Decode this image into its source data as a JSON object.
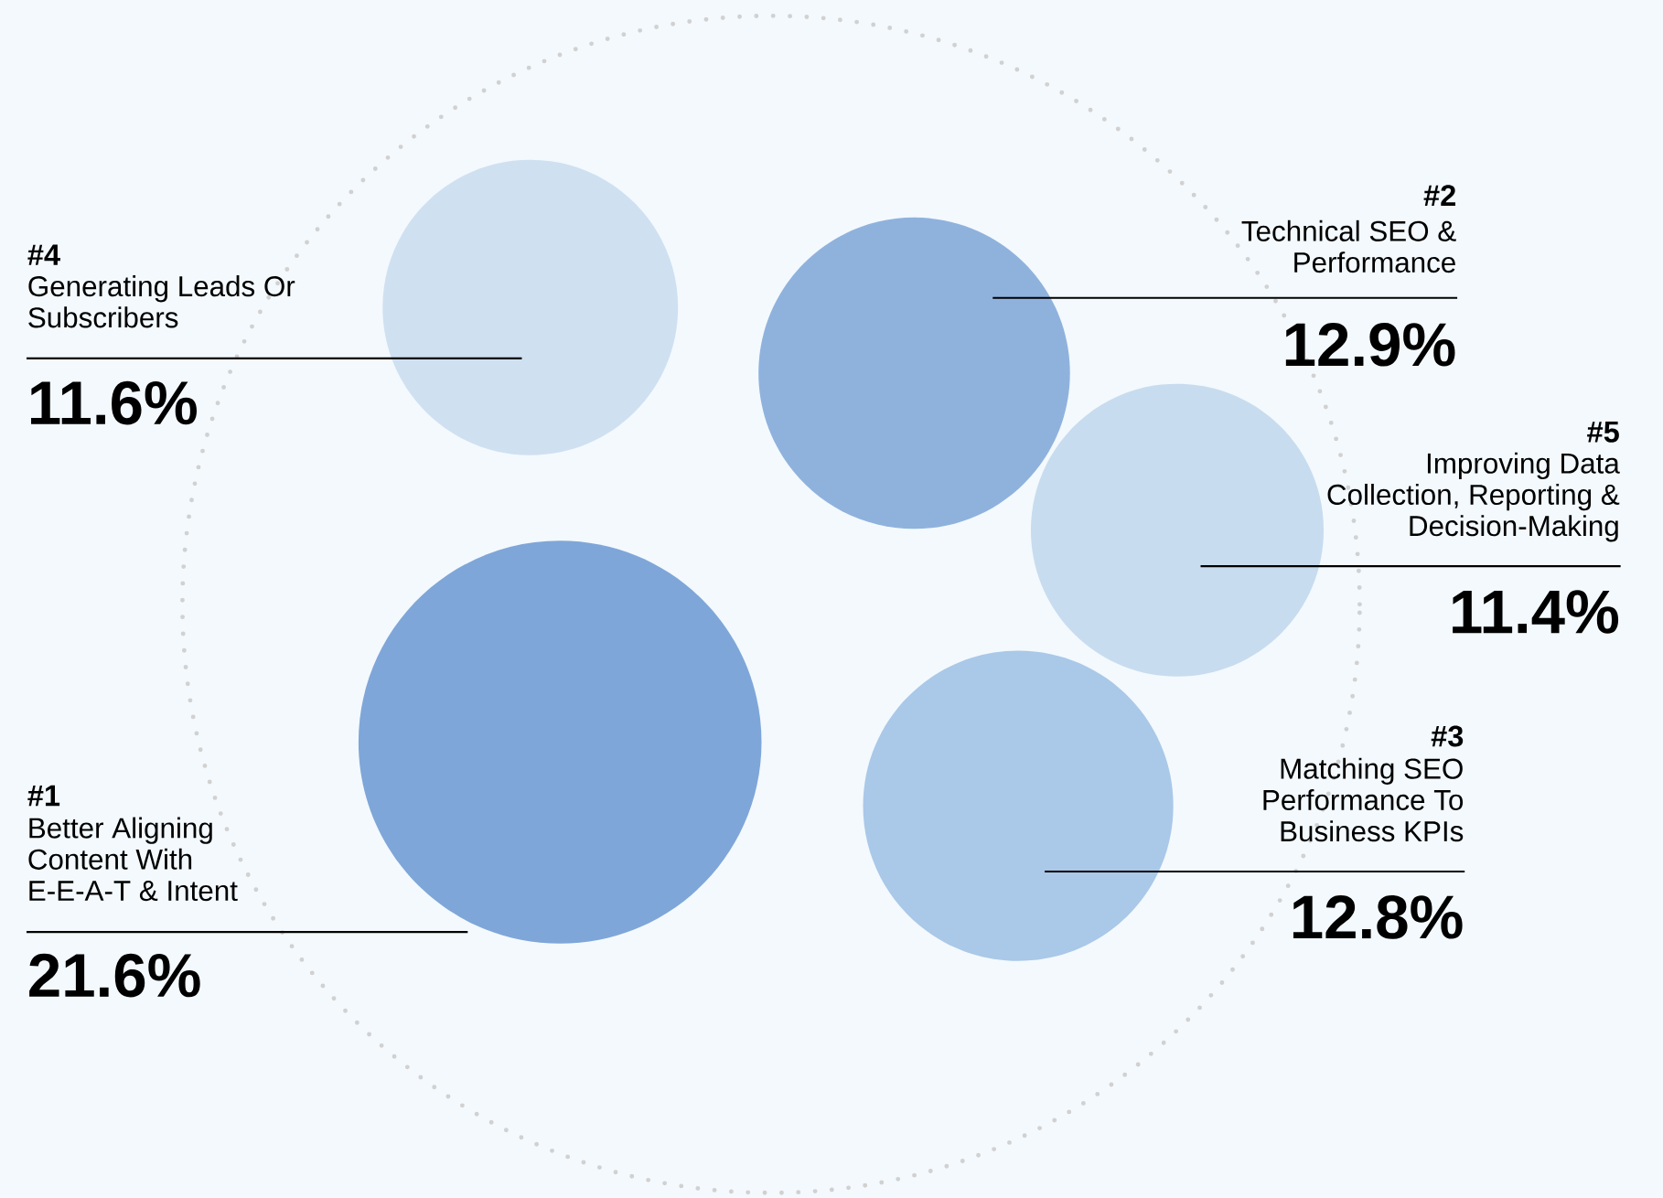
{
  "chart_data": {
    "type": "other",
    "categories": [
      "Better Aligning Content With E-E-A-T & Intent",
      "Technical SEO & Performance",
      "Matching SEO Performance To Business KPIs",
      "Generating Leads Or Subscribers",
      "Improving Data Collection, Reporting & Decision-Making"
    ],
    "values": [
      21.6,
      12.9,
      12.8,
      11.6,
      11.4
    ],
    "value_labels": [
      "21.6%",
      "12.9%",
      "12.8%",
      "11.6%",
      "11.4%"
    ],
    "annotations": [
      "#1",
      "#2",
      "#3",
      "#4",
      "#5"
    ],
    "colors": [
      "#7fa6d8",
      "#8fb2dd",
      "#aac8e8",
      "#cfe0f1",
      "#c8dcef"
    ]
  }
}
